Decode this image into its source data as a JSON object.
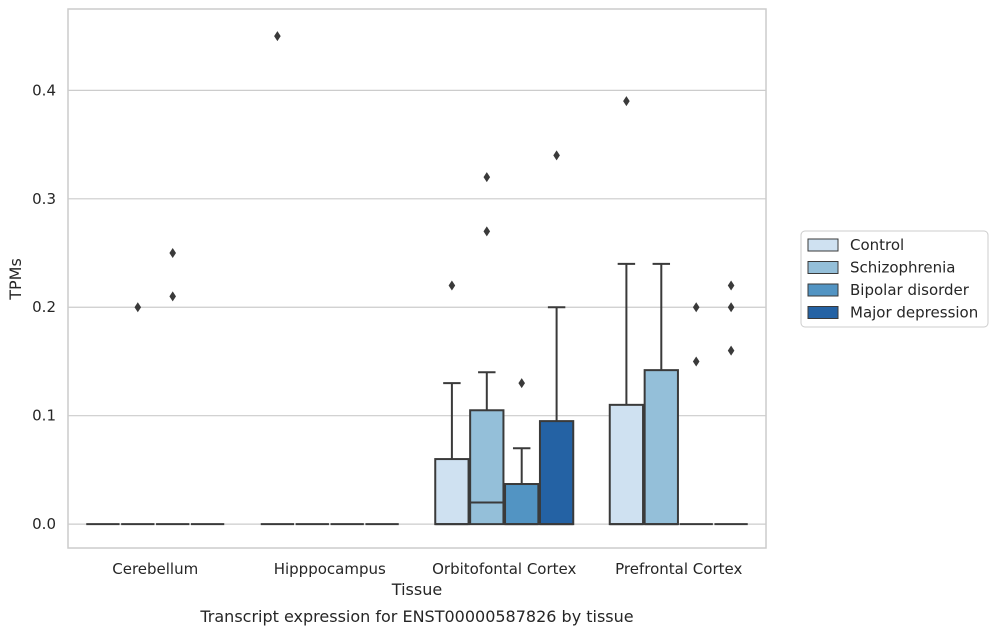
{
  "caption": "Transcript expression for ENST00000587826 by tissue",
  "chart_data": {
    "type": "boxplot",
    "xlabel": "Tissue",
    "ylabel": "TPMs",
    "ylim": [
      -0.022,
      0.475
    ],
    "yticks": [
      0.0,
      0.1,
      0.2,
      0.3,
      0.4
    ],
    "ytick_labels": [
      "0.0",
      "0.1",
      "0.2",
      "0.3",
      "0.4"
    ],
    "grid": "horizontal",
    "legend_position": "right",
    "categories": [
      "Cerebellum",
      "Hipppocampus",
      "Orbitofontal Cortex",
      "Prefrontal Cortex"
    ],
    "series": [
      {
        "name": "Control",
        "color": "#cfe1f1",
        "boxes": [
          {
            "min": 0,
            "q1": 0,
            "median": 0,
            "q3": 0,
            "max": 0,
            "outliers": []
          },
          {
            "min": 0,
            "q1": 0,
            "median": 0,
            "q3": 0,
            "max": 0,
            "outliers": [
              0.45
            ]
          },
          {
            "min": 0,
            "q1": 0,
            "median": 0,
            "q3": 0.06,
            "max": 0.13,
            "outliers": [
              0.22
            ]
          },
          {
            "min": 0,
            "q1": 0,
            "median": 0,
            "q3": 0.11,
            "max": 0.24,
            "outliers": [
              0.39
            ]
          }
        ]
      },
      {
        "name": "Schizophrenia",
        "color": "#94bfd9",
        "boxes": [
          {
            "min": 0,
            "q1": 0,
            "median": 0,
            "q3": 0,
            "max": 0,
            "outliers": [
              0.2
            ]
          },
          {
            "min": 0,
            "q1": 0,
            "median": 0,
            "q3": 0,
            "max": 0,
            "outliers": []
          },
          {
            "min": 0,
            "q1": 0,
            "median": 0.02,
            "q3": 0.105,
            "max": 0.14,
            "outliers": [
              0.27,
              0.32
            ]
          },
          {
            "min": 0,
            "q1": 0,
            "median": 0,
            "q3": 0.142,
            "max": 0.24,
            "outliers": []
          }
        ]
      },
      {
        "name": "Bipolar disorder",
        "color": "#5294c3",
        "boxes": [
          {
            "min": 0,
            "q1": 0,
            "median": 0,
            "q3": 0,
            "max": 0,
            "outliers": [
              0.21,
              0.25
            ]
          },
          {
            "min": 0,
            "q1": 0,
            "median": 0,
            "q3": 0,
            "max": 0,
            "outliers": []
          },
          {
            "min": 0,
            "q1": 0,
            "median": 0,
            "q3": 0.037,
            "max": 0.07,
            "outliers": [
              0.13
            ]
          },
          {
            "min": 0,
            "q1": 0,
            "median": 0,
            "q3": 0,
            "max": 0,
            "outliers": [
              0.15,
              0.2
            ]
          }
        ]
      },
      {
        "name": "Major depression",
        "color": "#2462a4",
        "boxes": [
          {
            "min": 0,
            "q1": 0,
            "median": 0,
            "q3": 0,
            "max": 0,
            "outliers": []
          },
          {
            "min": 0,
            "q1": 0,
            "median": 0,
            "q3": 0,
            "max": 0,
            "outliers": []
          },
          {
            "min": 0,
            "q1": 0,
            "median": 0,
            "q3": 0.095,
            "max": 0.2,
            "outliers": [
              0.34
            ]
          },
          {
            "min": 0,
            "q1": 0,
            "median": 0,
            "q3": 0,
            "max": 0,
            "outliers": [
              0.16,
              0.2,
              0.22
            ]
          }
        ]
      }
    ]
  }
}
